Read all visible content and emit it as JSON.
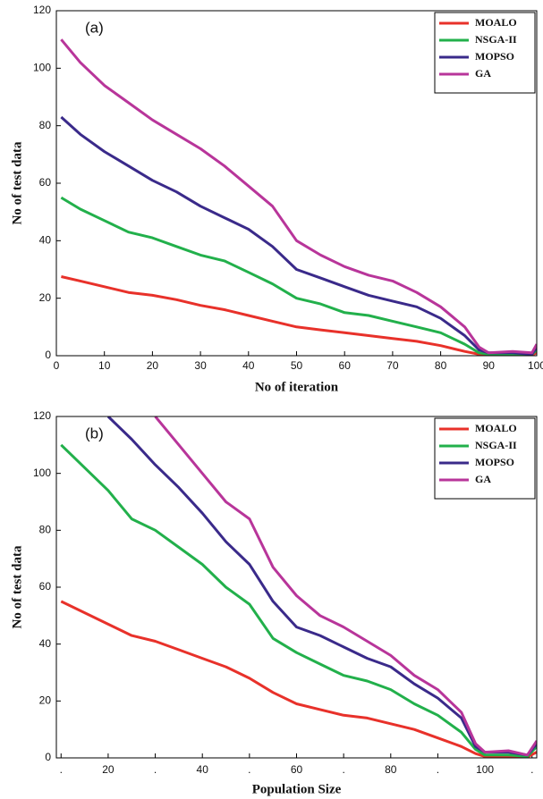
{
  "chart_data": [
    {
      "type": "line",
      "annotation": "(a)",
      "xlabel": "No of iteration",
      "ylabel": "No of test data",
      "x": [
        1,
        5,
        10,
        15,
        20,
        25,
        30,
        35,
        40,
        45,
        50,
        55,
        60,
        65,
        70,
        75,
        80,
        85,
        88,
        90,
        95,
        99,
        100
      ],
      "xlim": [
        0,
        100
      ],
      "xticks": [
        0,
        10,
        20,
        30,
        40,
        50,
        60,
        70,
        80,
        90,
        100
      ],
      "ylim": [
        0,
        120
      ],
      "yticks": [
        0,
        20,
        40,
        60,
        80,
        100,
        120
      ],
      "legend": "upper right",
      "series": [
        {
          "name": "MOALO",
          "color": "#e8312a",
          "values": [
            27.5,
            26,
            24,
            22,
            21,
            19.5,
            17.5,
            16,
            14,
            12,
            10,
            9,
            8,
            7,
            6,
            5,
            3.5,
            1.5,
            0.5,
            0.3,
            0.3,
            0.3,
            1
          ]
        },
        {
          "name": "NSGA-II",
          "color": "#22b04b",
          "values": [
            55,
            51,
            47,
            43,
            41,
            38,
            35,
            33,
            29,
            25,
            20,
            18,
            15,
            14,
            12,
            10,
            8,
            4,
            1,
            0.5,
            0.5,
            0.5,
            2
          ]
        },
        {
          "name": "MOPSO",
          "color": "#3a2a8a",
          "values": [
            83,
            77,
            71,
            66,
            61,
            57,
            52,
            48,
            44,
            38,
            30,
            27,
            24,
            21,
            19,
            17,
            13,
            7,
            2,
            1,
            1,
            0.5,
            3
          ]
        },
        {
          "name": "GA",
          "color": "#b8359a",
          "values": [
            110,
            102,
            94,
            88,
            82,
            77,
            72,
            66,
            59,
            52,
            40,
            35,
            31,
            28,
            26,
            22,
            17,
            10,
            3,
            1,
            1.5,
            1,
            4
          ]
        }
      ]
    },
    {
      "type": "line",
      "annotation": "(b)",
      "xlabel": "Population Size",
      "ylabel": "No of test data",
      "x": [
        10,
        15,
        20,
        25,
        30,
        35,
        40,
        45,
        50,
        55,
        60,
        65,
        70,
        75,
        80,
        85,
        90,
        95,
        98,
        100,
        105,
        109,
        111
      ],
      "xlim": [
        9,
        111
      ],
      "xticks": [
        {
          "value": 10,
          "label": "."
        },
        20,
        {
          "value": 30,
          "label": "."
        },
        40,
        {
          "value": 50,
          "label": "."
        },
        60,
        {
          "value": 70,
          "label": "."
        },
        80,
        {
          "value": 90,
          "label": "."
        },
        100,
        {
          "value": 110,
          "label": "."
        }
      ],
      "ylim": [
        0,
        120
      ],
      "yticks": [
        0,
        20,
        40,
        60,
        80,
        100,
        120
      ],
      "legend": "upper right",
      "series": [
        {
          "name": "MOALO",
          "color": "#e8312a",
          "values": [
            55,
            51,
            47,
            43,
            41,
            38,
            35,
            32,
            28,
            23,
            19,
            17,
            15,
            14,
            12,
            10,
            7,
            4,
            1.5,
            0.5,
            0.5,
            0.3,
            2
          ]
        },
        {
          "name": "NSGA-II",
          "color": "#22b04b",
          "values": [
            110,
            102,
            94,
            84,
            80,
            74,
            68,
            60,
            54,
            42,
            37,
            33,
            29,
            27,
            24,
            19,
            15,
            9,
            3,
            1,
            1,
            0.5,
            4
          ]
        },
        {
          "name": "MOPSO",
          "color": "#3a2a8a",
          "values": [
            null,
            null,
            120,
            112,
            103,
            95,
            86,
            76,
            68,
            55,
            46,
            43,
            39,
            35,
            32,
            26,
            21,
            14,
            4,
            2,
            2,
            1,
            5
          ]
        },
        {
          "name": "GA",
          "color": "#b8359a",
          "values": [
            null,
            null,
            null,
            null,
            120,
            110,
            100,
            90,
            84,
            67,
            57,
            50,
            46,
            41,
            36,
            29,
            24,
            16,
            5,
            2,
            2.5,
            1,
            6
          ]
        }
      ]
    }
  ]
}
